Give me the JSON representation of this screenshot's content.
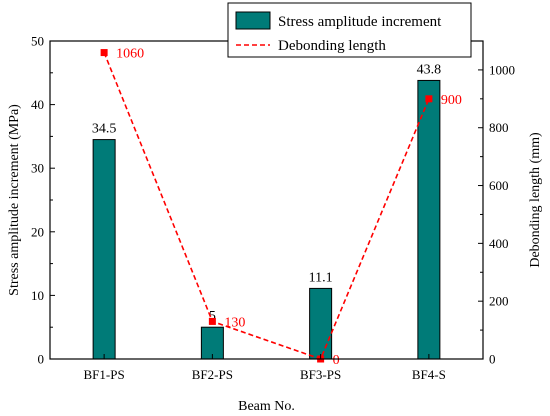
{
  "chart_data": {
    "type": "bar",
    "xlabel": "Beam No.",
    "categories": [
      "BF1-PS",
      "BF2-PS",
      "BF3-PS",
      "BF4-S"
    ],
    "series": [
      {
        "name": "Stress amplitude increment",
        "type": "bar",
        "axis": "left",
        "color": "#007b78",
        "values": [
          34.5,
          5,
          11.1,
          43.8
        ],
        "labels": [
          "34.5",
          "5",
          "11.1",
          "43.8"
        ]
      },
      {
        "name": "Debonding length",
        "type": "line",
        "axis": "right",
        "color": "#ff0000",
        "line_style": "dashed",
        "marker": "square",
        "values": [
          1060,
          130,
          0,
          900
        ],
        "labels": [
          "1060",
          "130",
          "0",
          "900"
        ]
      }
    ],
    "y_left": {
      "label": "Stress amplitude increment (MPa)",
      "lim": [
        0,
        50
      ],
      "ticks": [
        0,
        10,
        20,
        30,
        40,
        50
      ]
    },
    "y_right": {
      "label": "Debonding length (mm)",
      "lim": [
        0,
        1100
      ],
      "ticks": [
        0,
        200,
        400,
        600,
        800,
        1000
      ]
    },
    "legend_placement": "top-right",
    "grid": false
  }
}
